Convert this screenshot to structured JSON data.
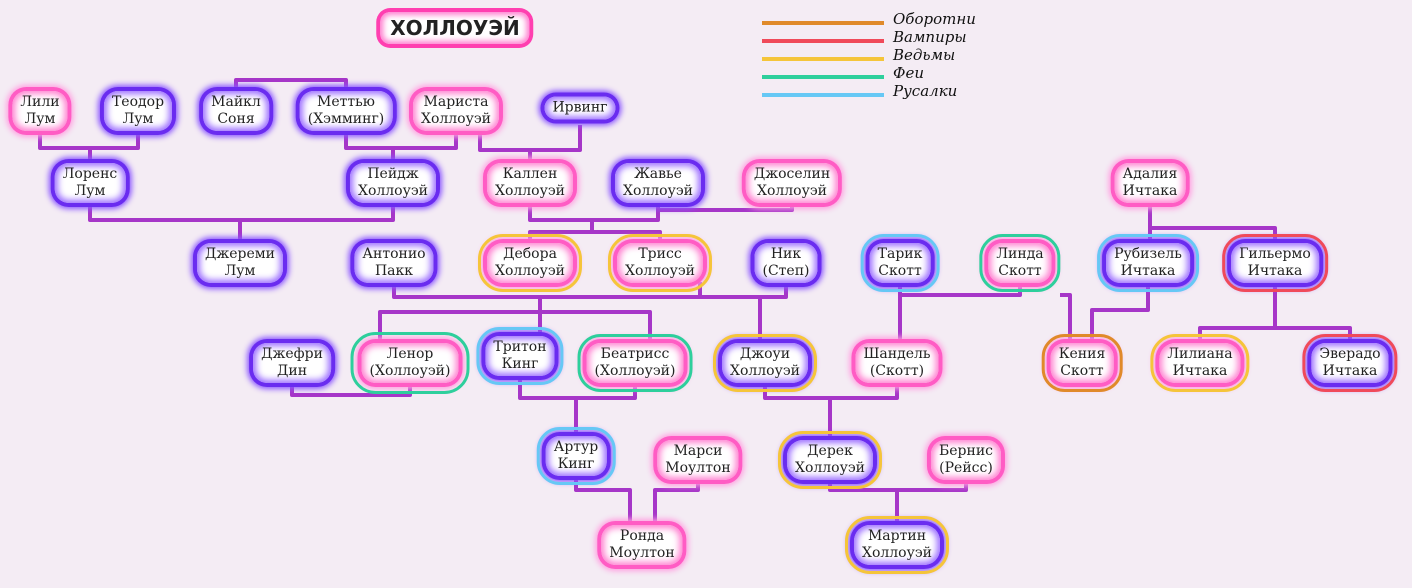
{
  "title": "ХОЛЛОУЭЙ",
  "legend": [
    {
      "label": "Оборотни",
      "color": "#e08a2a"
    },
    {
      "label": "Вампиры",
      "color": "#f04a5a"
    },
    {
      "label": "Ведьмы",
      "color": "#f5c53a"
    },
    {
      "label": "Феи",
      "color": "#2ecf9c"
    },
    {
      "label": "Русалки",
      "color": "#66c8f5"
    }
  ],
  "people": [
    {
      "l1": "Лили",
      "l2": "Лум"
    },
    {
      "l1": "Теодор",
      "l2": "Лум"
    },
    {
      "l1": "Майкл",
      "l2": "Соня"
    },
    {
      "l1": "Меттью",
      "l2": "(Хэмминг)"
    },
    {
      "l1": "Мариста",
      "l2": "Холлоуэй"
    },
    {
      "l1": "Ирвинг",
      "l2": ""
    },
    {
      "l1": "Лоренс",
      "l2": "Лум"
    },
    {
      "l1": "Пейдж",
      "l2": "Холлоуэй"
    },
    {
      "l1": "Каллен",
      "l2": "Холлоуэй"
    },
    {
      "l1": "Жавье",
      "l2": "Холлоуэй"
    },
    {
      "l1": "Джоселин",
      "l2": "Холлоуэй"
    },
    {
      "l1": "Адалия",
      "l2": "Ичтака"
    },
    {
      "l1": "Джереми",
      "l2": "Лум"
    },
    {
      "l1": "Антонио",
      "l2": "Пакк"
    },
    {
      "l1": "Дебора",
      "l2": "Холлоуэй"
    },
    {
      "l1": "Трисс",
      "l2": "Холлоуэй"
    },
    {
      "l1": "Ник",
      "l2": "(Степ)"
    },
    {
      "l1": "Тарик",
      "l2": "Скотт"
    },
    {
      "l1": "Линда",
      "l2": "Скотт"
    },
    {
      "l1": "Рубизель",
      "l2": "Ичтака"
    },
    {
      "l1": "Гильермо",
      "l2": "Ичтака"
    },
    {
      "l1": "Джефри",
      "l2": "Дин"
    },
    {
      "l1": "Ленор",
      "l2": "(Холлоуэй)"
    },
    {
      "l1": "Тритон",
      "l2": "Кинг"
    },
    {
      "l1": "Беатрисс",
      "l2": "(Холлоуэй)"
    },
    {
      "l1": "Джоуи",
      "l2": "Холлоуэй"
    },
    {
      "l1": "Шандель",
      "l2": "(Скотт)"
    },
    {
      "l1": "Кения",
      "l2": "Скотт"
    },
    {
      "l1": "Лилиана",
      "l2": "Ичтака"
    },
    {
      "l1": "Эверадо",
      "l2": "Ичтака"
    },
    {
      "l1": "Артур",
      "l2": "Кинг"
    },
    {
      "l1": "Марси",
      "l2": "Моултон"
    },
    {
      "l1": "Дерек",
      "l2": "Холлоуэй"
    },
    {
      "l1": "Бернис",
      "l2": "(Рейсс)"
    },
    {
      "l1": "Ронда",
      "l2": "Моултон"
    },
    {
      "l1": "Мартин",
      "l2": "Холлоуэй"
    }
  ]
}
